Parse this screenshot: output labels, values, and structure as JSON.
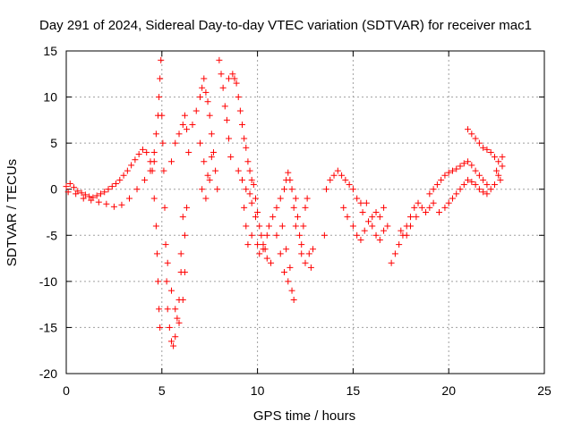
{
  "chart_data": {
    "type": "scatter",
    "title": "Day 291 of 2024, Sidereal Day-to-day VTEC variation (SDTVAR) for receiver mac1",
    "xlabel": "GPS time / hours",
    "ylabel": "SDTVAR / TECUs",
    "xlim": [
      0,
      25
    ],
    "ylim": [
      -20,
      15
    ],
    "xticks": [
      0,
      5,
      10,
      15,
      20,
      25
    ],
    "yticks": [
      -20,
      -15,
      -10,
      -5,
      0,
      5,
      10,
      15
    ],
    "grid": true,
    "marker": "+",
    "color": "#ff0000",
    "series": [
      {
        "name": "SDTVAR",
        "points": [
          [
            0.0,
            0.3
          ],
          [
            0.2,
            0.6
          ],
          [
            0.4,
            0.2
          ],
          [
            0.6,
            -0.2
          ],
          [
            0.8,
            -0.4
          ],
          [
            1.0,
            -0.6
          ],
          [
            1.2,
            -0.8
          ],
          [
            1.4,
            -0.9
          ],
          [
            1.6,
            -0.7
          ],
          [
            1.8,
            -0.5
          ],
          [
            2.0,
            -0.3
          ],
          [
            2.2,
            0.0
          ],
          [
            2.4,
            0.3
          ],
          [
            2.6,
            0.6
          ],
          [
            2.8,
            1.0
          ],
          [
            3.0,
            1.5
          ],
          [
            3.2,
            2.0
          ],
          [
            3.4,
            2.6
          ],
          [
            3.6,
            3.2
          ],
          [
            3.8,
            3.8
          ],
          [
            4.0,
            4.3
          ],
          [
            4.2,
            4.0
          ],
          [
            4.4,
            3.0
          ],
          [
            0.1,
            -0.3
          ],
          [
            0.5,
            -0.5
          ],
          [
            0.9,
            -1.0
          ],
          [
            1.3,
            -1.2
          ],
          [
            1.7,
            -1.4
          ],
          [
            2.1,
            -1.6
          ],
          [
            2.5,
            -1.9
          ],
          [
            2.9,
            -1.7
          ],
          [
            3.3,
            -1.0
          ],
          [
            3.7,
            0.0
          ],
          [
            4.1,
            1.0
          ],
          [
            4.4,
            2.0
          ],
          [
            4.6,
            3.0
          ],
          [
            4.5,
            2.0
          ],
          [
            4.6,
            4.0
          ],
          [
            4.7,
            6.0
          ],
          [
            4.8,
            8.0
          ],
          [
            4.85,
            10.0
          ],
          [
            4.9,
            12.0
          ],
          [
            4.95,
            14.0
          ],
          [
            4.6,
            -1.0
          ],
          [
            4.7,
            -4.0
          ],
          [
            4.75,
            -7.0
          ],
          [
            4.8,
            -10.0
          ],
          [
            4.85,
            -13.0
          ],
          [
            4.9,
            -15.0
          ],
          [
            5.0,
            8.0
          ],
          [
            5.05,
            5.0
          ],
          [
            5.1,
            2.0
          ],
          [
            5.15,
            -2.0
          ],
          [
            5.2,
            -6.0
          ],
          [
            5.25,
            -10.0
          ],
          [
            5.3,
            -13.0
          ],
          [
            5.4,
            -15.0
          ],
          [
            5.5,
            -16.5
          ],
          [
            5.6,
            -17.0
          ],
          [
            5.7,
            -16.0
          ],
          [
            5.8,
            -14.0
          ],
          [
            5.9,
            -12.0
          ],
          [
            6.0,
            -9.0
          ],
          [
            5.3,
            -8.0
          ],
          [
            5.5,
            -11.0
          ],
          [
            5.7,
            -13.0
          ],
          [
            5.9,
            -14.5
          ],
          [
            6.1,
            -12.0
          ],
          [
            6.2,
            -9.0
          ],
          [
            5.5,
            3.0
          ],
          [
            5.7,
            5.0
          ],
          [
            5.9,
            6.0
          ],
          [
            6.1,
            7.0
          ],
          [
            6.2,
            8.0
          ],
          [
            6.3,
            6.5
          ],
          [
            6.4,
            4.0
          ],
          [
            6.1,
            -3.0
          ],
          [
            6.2,
            -5.0
          ],
          [
            6.0,
            -7.0
          ],
          [
            6.3,
            -2.0
          ],
          [
            6.6,
            7.0
          ],
          [
            6.8,
            8.5
          ],
          [
            7.0,
            10.0
          ],
          [
            7.1,
            11.0
          ],
          [
            7.2,
            12.0
          ],
          [
            7.3,
            10.5
          ],
          [
            7.4,
            9.5
          ],
          [
            7.5,
            8.0
          ],
          [
            7.6,
            6.0
          ],
          [
            7.7,
            4.0
          ],
          [
            7.8,
            2.0
          ],
          [
            7.9,
            0.0
          ],
          [
            7.0,
            5.0
          ],
          [
            7.2,
            3.0
          ],
          [
            7.4,
            1.5
          ],
          [
            7.1,
            0.0
          ],
          [
            7.3,
            -1.0
          ],
          [
            7.5,
            1.0
          ],
          [
            7.6,
            3.5
          ],
          [
            8.0,
            14.0
          ],
          [
            8.1,
            12.5
          ],
          [
            8.2,
            11.0
          ],
          [
            8.3,
            9.0
          ],
          [
            8.4,
            7.5
          ],
          [
            8.5,
            5.5
          ],
          [
            8.6,
            3.5
          ],
          [
            8.5,
            12.0
          ],
          [
            8.7,
            12.5
          ],
          [
            8.8,
            12.0
          ],
          [
            8.9,
            11.5
          ],
          [
            9.0,
            10.0
          ],
          [
            9.1,
            8.5
          ],
          [
            9.2,
            7.0
          ],
          [
            9.3,
            5.5
          ],
          [
            9.4,
            4.5
          ],
          [
            9.5,
            3.0
          ],
          [
            9.6,
            2.0
          ],
          [
            9.7,
            1.0
          ],
          [
            9.8,
            0.5
          ],
          [
            9.9,
            -1.0
          ],
          [
            9.0,
            2.0
          ],
          [
            9.2,
            1.0
          ],
          [
            9.4,
            0.0
          ],
          [
            9.6,
            -0.5
          ],
          [
            9.7,
            -1.5
          ],
          [
            9.3,
            -2.0
          ],
          [
            9.4,
            -4.0
          ],
          [
            9.5,
            -6.0
          ],
          [
            9.7,
            -5.0
          ],
          [
            9.9,
            -3.0
          ],
          [
            10.0,
            -2.5
          ],
          [
            10.1,
            -4.0
          ],
          [
            10.2,
            -5.0
          ],
          [
            10.3,
            -6.0
          ],
          [
            10.4,
            -6.5
          ],
          [
            10.5,
            -5.0
          ],
          [
            10.6,
            -4.0
          ],
          [
            10.0,
            -6.0
          ],
          [
            10.1,
            -7.0
          ],
          [
            10.3,
            -6.5
          ],
          [
            10.5,
            -7.5
          ],
          [
            10.7,
            -8.0
          ],
          [
            10.8,
            -3.0
          ],
          [
            11.0,
            -2.0
          ],
          [
            11.2,
            -1.0
          ],
          [
            11.4,
            0.0
          ],
          [
            11.5,
            1.0
          ],
          [
            11.6,
            1.8
          ],
          [
            11.7,
            1.0
          ],
          [
            11.8,
            0.0
          ],
          [
            11.9,
            -2.0
          ],
          [
            12.0,
            -4.0
          ],
          [
            11.0,
            -5.0
          ],
          [
            11.2,
            -7.0
          ],
          [
            11.4,
            -9.0
          ],
          [
            11.6,
            -10.0
          ],
          [
            11.8,
            -11.0
          ],
          [
            11.9,
            -12.0
          ],
          [
            11.3,
            -4.0
          ],
          [
            11.5,
            -6.5
          ],
          [
            11.7,
            -8.5
          ],
          [
            12.0,
            -1.0
          ],
          [
            12.1,
            -3.0
          ],
          [
            12.2,
            -5.0
          ],
          [
            12.3,
            -6.0
          ],
          [
            12.4,
            -4.0
          ],
          [
            12.5,
            -2.0
          ],
          [
            12.6,
            -1.0
          ],
          [
            12.3,
            -7.0
          ],
          [
            12.5,
            -8.0
          ],
          [
            12.7,
            -7.0
          ],
          [
            12.9,
            -6.5
          ],
          [
            12.8,
            -8.5
          ],
          [
            13.5,
            -5.0
          ],
          [
            13.6,
            0.0
          ],
          [
            13.8,
            1.0
          ],
          [
            14.0,
            1.5
          ],
          [
            14.2,
            2.0
          ],
          [
            14.4,
            1.5
          ],
          [
            14.6,
            1.0
          ],
          [
            14.8,
            0.5
          ],
          [
            15.0,
            0.0
          ],
          [
            15.2,
            -1.0
          ],
          [
            15.4,
            -1.5
          ],
          [
            15.5,
            -2.5
          ],
          [
            15.7,
            -1.5
          ],
          [
            14.5,
            -2.0
          ],
          [
            14.7,
            -3.0
          ],
          [
            15.0,
            -4.0
          ],
          [
            15.2,
            -5.0
          ],
          [
            15.4,
            -5.5
          ],
          [
            15.6,
            -4.5
          ],
          [
            15.8,
            -3.5
          ],
          [
            16.0,
            -3.0
          ],
          [
            16.2,
            -2.5
          ],
          [
            16.4,
            -3.0
          ],
          [
            16.6,
            -2.0
          ],
          [
            16.0,
            -4.0
          ],
          [
            16.2,
            -5.0
          ],
          [
            16.4,
            -5.5
          ],
          [
            16.6,
            -4.5
          ],
          [
            16.8,
            -4.0
          ],
          [
            17.0,
            -8.0
          ],
          [
            17.2,
            -7.0
          ],
          [
            17.4,
            -6.0
          ],
          [
            17.6,
            -5.0
          ],
          [
            17.8,
            -4.0
          ],
          [
            18.0,
            -3.0
          ],
          [
            18.2,
            -2.0
          ],
          [
            18.4,
            -1.5
          ],
          [
            18.6,
            -2.0
          ],
          [
            18.8,
            -2.5
          ],
          [
            19.0,
            -2.0
          ],
          [
            19.2,
            -1.5
          ],
          [
            17.5,
            -4.5
          ],
          [
            17.8,
            -5.0
          ],
          [
            18.0,
            -4.0
          ],
          [
            18.3,
            -3.0
          ],
          [
            19.0,
            -0.5
          ],
          [
            19.2,
            0.0
          ],
          [
            19.4,
            0.5
          ],
          [
            19.6,
            1.0
          ],
          [
            19.8,
            1.5
          ],
          [
            20.0,
            1.8
          ],
          [
            20.2,
            2.0
          ],
          [
            20.4,
            2.2
          ],
          [
            20.6,
            2.5
          ],
          [
            20.8,
            2.8
          ],
          [
            21.0,
            3.0
          ],
          [
            21.2,
            2.6
          ],
          [
            21.4,
            2.0
          ],
          [
            21.6,
            1.5
          ],
          [
            21.8,
            1.0
          ],
          [
            22.0,
            0.5
          ],
          [
            22.2,
            0.0
          ],
          [
            22.4,
            0.5
          ],
          [
            22.6,
            1.5
          ],
          [
            22.8,
            2.5
          ],
          [
            19.5,
            -2.5
          ],
          [
            19.8,
            -2.0
          ],
          [
            20.0,
            -1.5
          ],
          [
            20.2,
            -1.0
          ],
          [
            20.4,
            -0.5
          ],
          [
            20.6,
            0.0
          ],
          [
            20.8,
            0.5
          ],
          [
            21.0,
            1.0
          ],
          [
            21.2,
            0.8
          ],
          [
            21.4,
            0.5
          ],
          [
            21.6,
            0.0
          ],
          [
            21.8,
            -0.3
          ],
          [
            22.0,
            -0.5
          ],
          [
            21.0,
            6.5
          ],
          [
            21.2,
            6.0
          ],
          [
            21.4,
            5.5
          ],
          [
            21.6,
            5.0
          ],
          [
            21.8,
            4.5
          ],
          [
            22.0,
            4.3
          ],
          [
            22.2,
            4.0
          ],
          [
            22.4,
            3.5
          ],
          [
            22.6,
            3.0
          ],
          [
            22.8,
            3.5
          ],
          [
            22.5,
            2.0
          ],
          [
            22.7,
            1.0
          ]
        ]
      }
    ]
  }
}
